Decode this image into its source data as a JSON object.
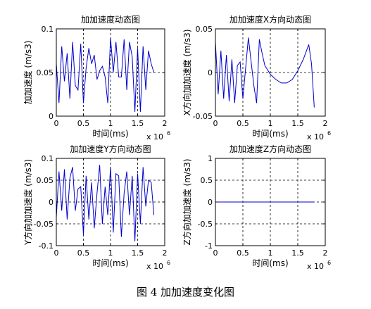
{
  "caption": "图 4  加加速度变化图",
  "chart_data": [
    {
      "type": "line",
      "title": "加加速度动态图",
      "xlabel": "时间(ms)",
      "ylabel": "加加速度 (m/s3)",
      "x_exponent": "x 10",
      "x_exponent_power": "6",
      "xlim": [
        0,
        2
      ],
      "ylim": [
        0,
        0.1
      ],
      "xticks": [
        "0",
        "0.5",
        "1",
        "1.5",
        "2"
      ],
      "yticks": [
        "0",
        "0.05",
        "0.1"
      ],
      "grid": true,
      "line_color": "#0000cc",
      "series": [
        {
          "x": [
            0,
            0.05,
            0.1,
            0.15,
            0.2,
            0.25,
            0.3,
            0.35,
            0.4,
            0.45,
            0.5,
            0.55,
            0.6,
            0.65,
            0.7,
            0.75,
            0.8,
            0.85,
            0.9,
            0.95,
            1.0,
            1.05,
            1.1,
            1.15,
            1.2,
            1.25,
            1.3,
            1.35,
            1.4,
            1.45,
            1.5,
            1.55,
            1.6,
            1.65,
            1.7,
            1.75,
            1.8
          ],
          "y": [
            0.06,
            0.015,
            0.08,
            0.04,
            0.072,
            0.02,
            0.085,
            0.035,
            0.03,
            0.083,
            0.015,
            0.055,
            0.078,
            0.06,
            0.07,
            0.042,
            0.052,
            0.057,
            0.045,
            0.015,
            0.09,
            0.05,
            0.085,
            0.045,
            0.045,
            0.088,
            0.03,
            0.085,
            0.068,
            0.005,
            0.078,
            0.005,
            0.08,
            0.03,
            0.075,
            0.06,
            0.05
          ]
        }
      ]
    },
    {
      "type": "line",
      "title": "加加速度X方向动态图",
      "xlabel": "时间(ms)",
      "ylabel": "X方向加加速度 (m/s3)",
      "x_exponent": "x 10",
      "x_exponent_power": "6",
      "xlim": [
        0,
        2
      ],
      "ylim": [
        -0.05,
        0.05
      ],
      "xticks": [
        "0",
        "0.5",
        "1",
        "1.5",
        "2"
      ],
      "yticks": [
        "-0.05",
        "0",
        "0.05"
      ],
      "grid": true,
      "line_color": "#0000cc",
      "series": [
        {
          "x": [
            0,
            0.05,
            0.1,
            0.15,
            0.2,
            0.25,
            0.3,
            0.35,
            0.4,
            0.45,
            0.5,
            0.6,
            0.7,
            0.75,
            0.8,
            0.85,
            0.9,
            1.0,
            1.1,
            1.2,
            1.3,
            1.4,
            1.5,
            1.6,
            1.7,
            1.75,
            1.8
          ],
          "y": [
            0.035,
            -0.025,
            0.025,
            -0.03,
            0.02,
            -0.033,
            0.015,
            -0.035,
            0.008,
            0.012,
            -0.03,
            0.04,
            -0.015,
            -0.035,
            0.038,
            0.022,
            0.008,
            -0.002,
            -0.008,
            -0.012,
            -0.012,
            -0.008,
            0.002,
            0.015,
            0.032,
            0.01,
            -0.04
          ]
        }
      ]
    },
    {
      "type": "line",
      "title": "加加速度Y方向动态图",
      "xlabel": "时间(ms)",
      "ylabel": "Y方向加加速度 (m/s3)",
      "x_exponent": "x 10",
      "x_exponent_power": "6",
      "xlim": [
        0,
        2
      ],
      "ylim": [
        -0.1,
        0.1
      ],
      "xticks": [
        "0",
        "0.5",
        "1",
        "1.5",
        "2"
      ],
      "yticks": [
        "-0.1",
        "-0.05",
        "0",
        "0.05",
        "0.1"
      ],
      "grid": true,
      "line_color": "#0000cc",
      "series": [
        {
          "x": [
            0,
            0.05,
            0.1,
            0.15,
            0.2,
            0.25,
            0.3,
            0.35,
            0.4,
            0.45,
            0.5,
            0.55,
            0.6,
            0.65,
            0.7,
            0.75,
            0.8,
            0.85,
            0.9,
            0.95,
            1.0,
            1.05,
            1.1,
            1.15,
            1.2,
            1.25,
            1.3,
            1.35,
            1.4,
            1.45,
            1.5,
            1.55,
            1.6,
            1.65,
            1.7,
            1.75,
            1.8
          ],
          "y": [
            -0.035,
            0.07,
            -0.02,
            0.075,
            -0.04,
            0.055,
            0.08,
            -0.02,
            0.03,
            0.035,
            -0.075,
            0.06,
            -0.04,
            0.045,
            -0.06,
            0.02,
            0.085,
            -0.05,
            0.035,
            -0.03,
            0.08,
            -0.07,
            0.065,
            0.06,
            -0.08,
            0.02,
            0.07,
            -0.03,
            0.06,
            -0.09,
            0.065,
            -0.05,
            0.08,
            -0.01,
            0.05,
            0.045,
            -0.03
          ]
        }
      ]
    },
    {
      "type": "line",
      "title": "加加速度Z方向动态图",
      "xlabel": "时间(ms)",
      "ylabel": "Z方向加加速度 (m/s3)",
      "x_exponent": "x 10",
      "x_exponent_power": "6",
      "xlim": [
        0,
        2
      ],
      "ylim": [
        -1,
        1
      ],
      "xticks": [
        "0",
        "0.5",
        "1",
        "1.5",
        "2"
      ],
      "yticks": [
        "-1",
        "-0.5",
        "0",
        "0.5",
        "1"
      ],
      "grid": true,
      "line_color": "#0000cc",
      "series": [
        {
          "x": [
            0,
            1.8
          ],
          "y": [
            0,
            0
          ]
        }
      ]
    }
  ]
}
